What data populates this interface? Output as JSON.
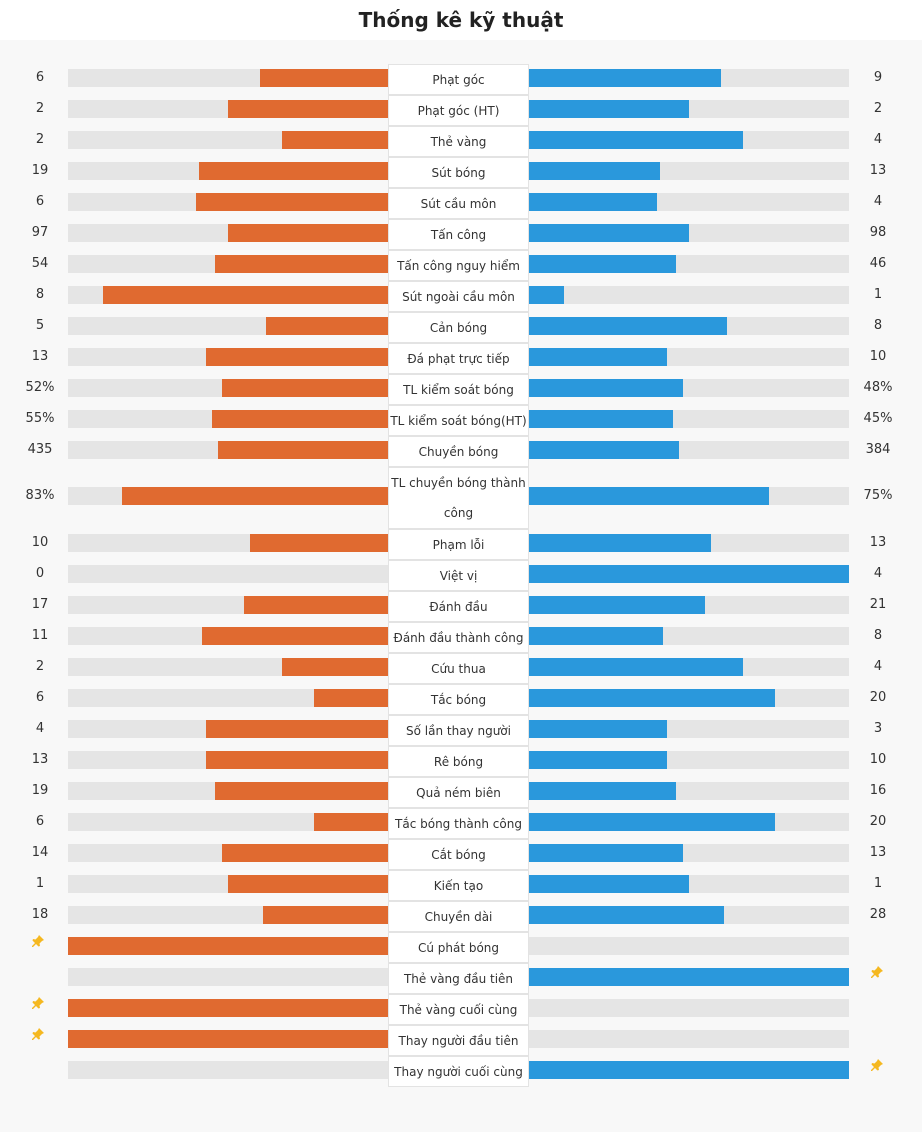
{
  "title": "Thống kê kỹ thuật",
  "colors": {
    "home": "#e06a30",
    "away": "#2a98dc",
    "track": "#e5e5e5",
    "pin": "#f5b820"
  },
  "stats": [
    {
      "label": "Phạt góc",
      "home": "6",
      "away": "9",
      "home_pct": 0.4,
      "away_pct": 0.6
    },
    {
      "label": "Phạt góc (HT)",
      "home": "2",
      "away": "2",
      "home_pct": 0.5,
      "away_pct": 0.5
    },
    {
      "label": "Thẻ vàng",
      "home": "2",
      "away": "4",
      "home_pct": 0.33,
      "away_pct": 0.67
    },
    {
      "label": "Sút bóng",
      "home": "19",
      "away": "13",
      "home_pct": 0.59,
      "away_pct": 0.41
    },
    {
      "label": "Sút cầu môn",
      "home": "6",
      "away": "4",
      "home_pct": 0.6,
      "away_pct": 0.4
    },
    {
      "label": "Tấn công",
      "home": "97",
      "away": "98",
      "home_pct": 0.5,
      "away_pct": 0.5
    },
    {
      "label": "Tấn công nguy hiểm",
      "home": "54",
      "away": "46",
      "home_pct": 0.54,
      "away_pct": 0.46
    },
    {
      "label": "Sút ngoài cầu môn",
      "home": "8",
      "away": "1",
      "home_pct": 0.89,
      "away_pct": 0.11
    },
    {
      "label": "Cản bóng",
      "home": "5",
      "away": "8",
      "home_pct": 0.38,
      "away_pct": 0.62
    },
    {
      "label": "Đá phạt trực tiếp",
      "home": "13",
      "away": "10",
      "home_pct": 0.57,
      "away_pct": 0.43
    },
    {
      "label": "TL kiểm soát bóng",
      "home": "52%",
      "away": "48%",
      "home_pct": 0.52,
      "away_pct": 0.48
    },
    {
      "label": "TL kiểm soát bóng(HT)",
      "home": "55%",
      "away": "45%",
      "home_pct": 0.55,
      "away_pct": 0.45
    },
    {
      "label": "Chuyền bóng",
      "home": "435",
      "away": "384",
      "home_pct": 0.53,
      "away_pct": 0.47
    },
    {
      "label": "TL chuyền bóng thành công",
      "home": "83%",
      "away": "75%",
      "home_pct": 0.83,
      "away_pct": 0.75,
      "tall": true
    },
    {
      "label": "Phạm lỗi",
      "home": "10",
      "away": "13",
      "home_pct": 0.43,
      "away_pct": 0.57
    },
    {
      "label": "Việt vị",
      "home": "0",
      "away": "4",
      "home_pct": 0.0,
      "away_pct": 1.0
    },
    {
      "label": "Đánh đầu",
      "home": "17",
      "away": "21",
      "home_pct": 0.45,
      "away_pct": 0.55
    },
    {
      "label": "Đánh đầu thành công",
      "home": "11",
      "away": "8",
      "home_pct": 0.58,
      "away_pct": 0.42
    },
    {
      "label": "Cứu thua",
      "home": "2",
      "away": "4",
      "home_pct": 0.33,
      "away_pct": 0.67
    },
    {
      "label": "Tắc bóng",
      "home": "6",
      "away": "20",
      "home_pct": 0.23,
      "away_pct": 0.77
    },
    {
      "label": "Số lần thay người",
      "home": "4",
      "away": "3",
      "home_pct": 0.57,
      "away_pct": 0.43
    },
    {
      "label": "Rê bóng",
      "home": "13",
      "away": "10",
      "home_pct": 0.57,
      "away_pct": 0.43
    },
    {
      "label": "Quả ném biên",
      "home": "19",
      "away": "16",
      "home_pct": 0.54,
      "away_pct": 0.46
    },
    {
      "label": "Tắc bóng thành công",
      "home": "6",
      "away": "20",
      "home_pct": 0.23,
      "away_pct": 0.77
    },
    {
      "label": "Cắt bóng",
      "home": "14",
      "away": "13",
      "home_pct": 0.52,
      "away_pct": 0.48
    },
    {
      "label": "Kiến tạo",
      "home": "1",
      "away": "1",
      "home_pct": 0.5,
      "away_pct": 0.5
    },
    {
      "label": "Chuyền dài",
      "home": "18",
      "away": "28",
      "home_pct": 0.39,
      "away_pct": 0.61
    },
    {
      "label": "Cú phát bóng",
      "home": "",
      "away": "",
      "home_pct": 1.0,
      "away_pct": 0.0,
      "pin": "home"
    },
    {
      "label": "Thẻ vàng đầu tiên",
      "home": "",
      "away": "",
      "home_pct": 0.0,
      "away_pct": 1.0,
      "pin": "away"
    },
    {
      "label": "Thẻ vàng cuối cùng",
      "home": "",
      "away": "",
      "home_pct": 1.0,
      "away_pct": 0.0,
      "pin": "home"
    },
    {
      "label": "Thay người đầu tiên",
      "home": "",
      "away": "",
      "home_pct": 1.0,
      "away_pct": 0.0,
      "pin": "home"
    },
    {
      "label": "Thay người cuối cùng",
      "home": "",
      "away": "",
      "home_pct": 0.0,
      "away_pct": 1.0,
      "pin": "away"
    }
  ]
}
